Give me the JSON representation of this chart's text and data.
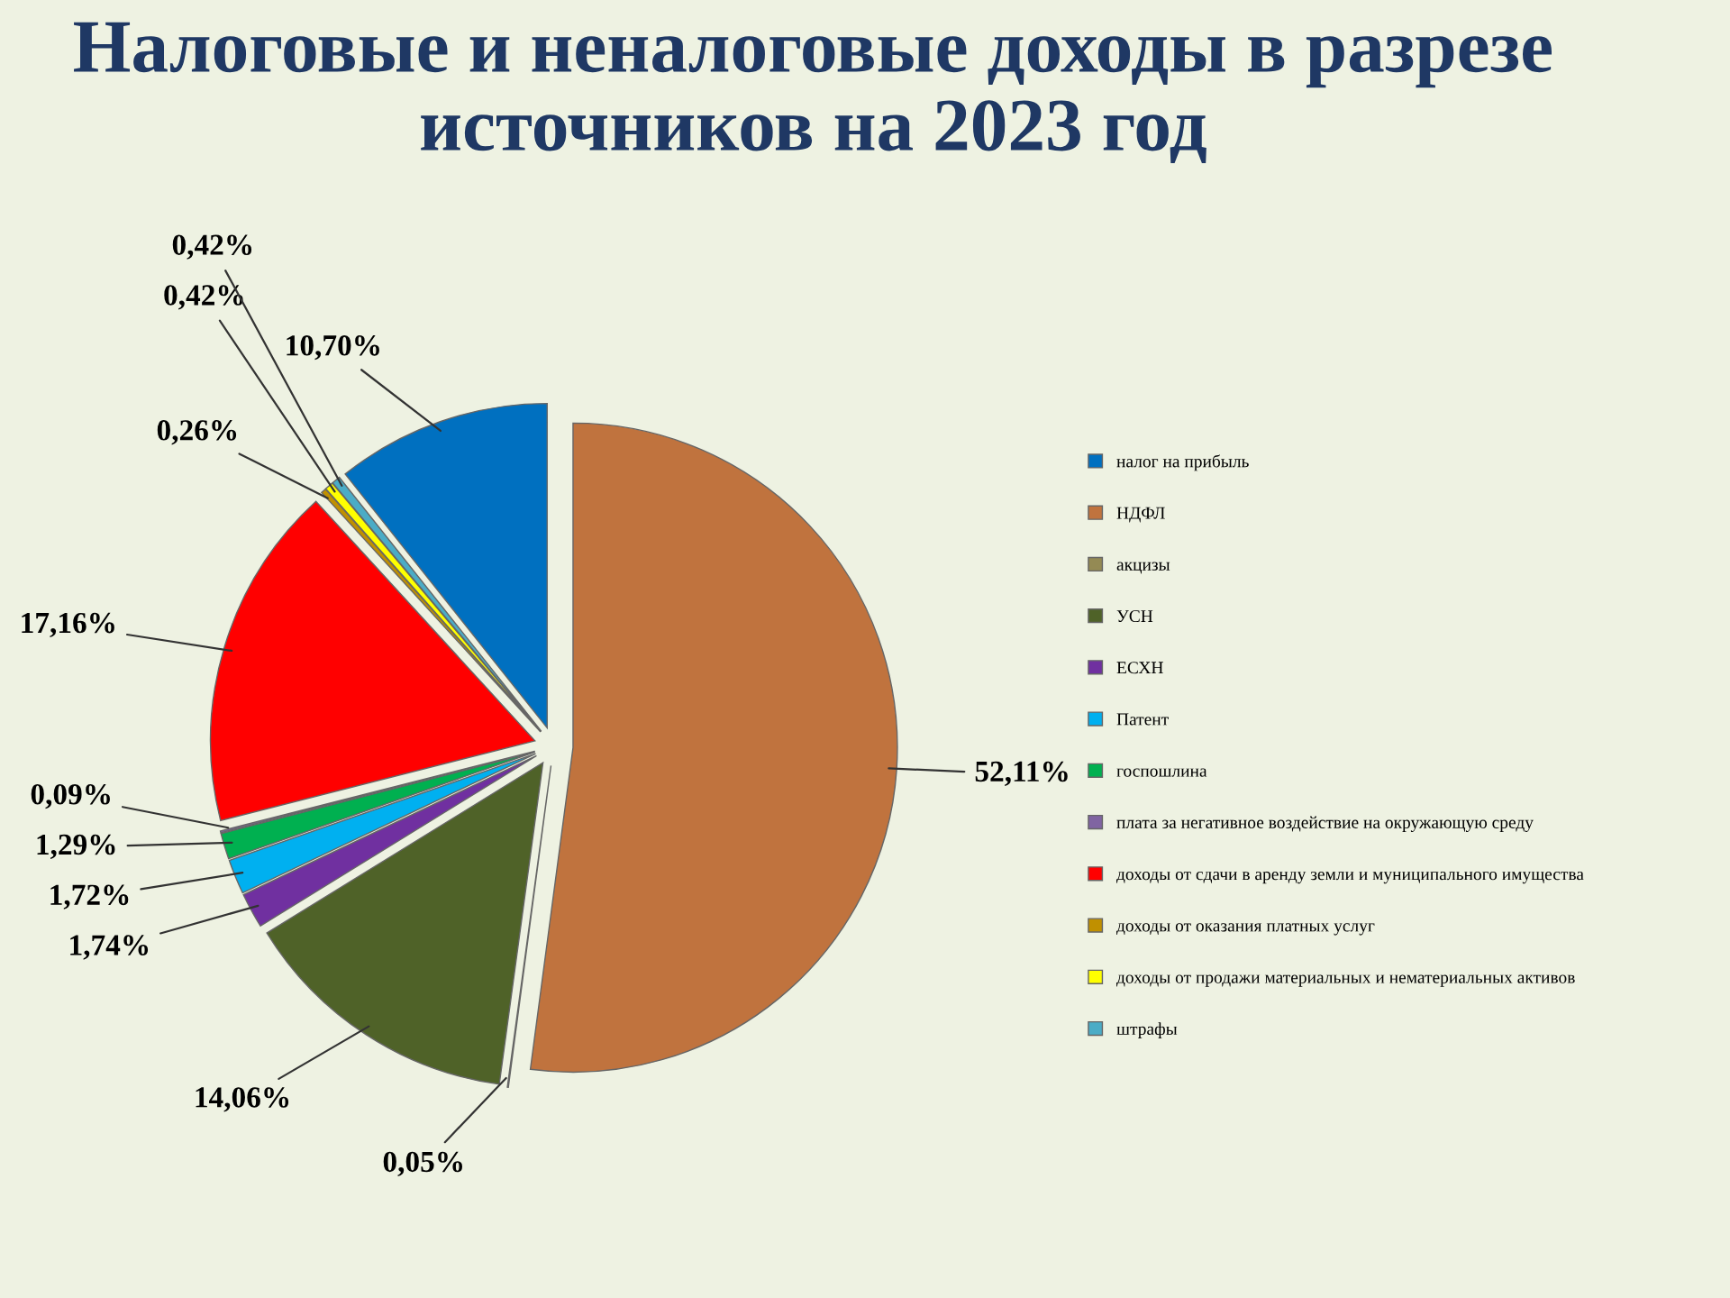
{
  "chart_data": {
    "type": "pie",
    "title": "Налоговые и неналоговые доходы в разрезе источников на 2023 год",
    "categories": [
      "налог на прибыль",
      "НДФЛ",
      "акцизы",
      "УСН",
      "ЕСХН",
      "Патент",
      "госпошлина",
      "плата за негативное воздействие на окружающую среду",
      "доходы от сдачи в аренду земли и муниципального имущества",
      "доходы от оказания платных услуг",
      "доходы от продажи материальных и нематериальных активов",
      "штрафы"
    ],
    "values": [
      10.7,
      52.11,
      0.05,
      14.06,
      1.74,
      1.72,
      1.29,
      0.09,
      17.16,
      0.26,
      0.42,
      0.42
    ],
    "value_labels": [
      "10,70%",
      "52,11%",
      "0,05%",
      "14,06%",
      "1,74%",
      "1,72%",
      "1,29%",
      "0,09%",
      "17,16%",
      "0,26%",
      "0,42%",
      "0,42%"
    ],
    "colors": [
      "#0070c0",
      "#c0733e",
      "#948a54",
      "#4f6228",
      "#7030a0",
      "#00b0f0",
      "#00b050",
      "#8064a2",
      "#ff0000",
      "#c09000",
      "#ffff00",
      "#4bacc6"
    ],
    "legend": "right"
  }
}
